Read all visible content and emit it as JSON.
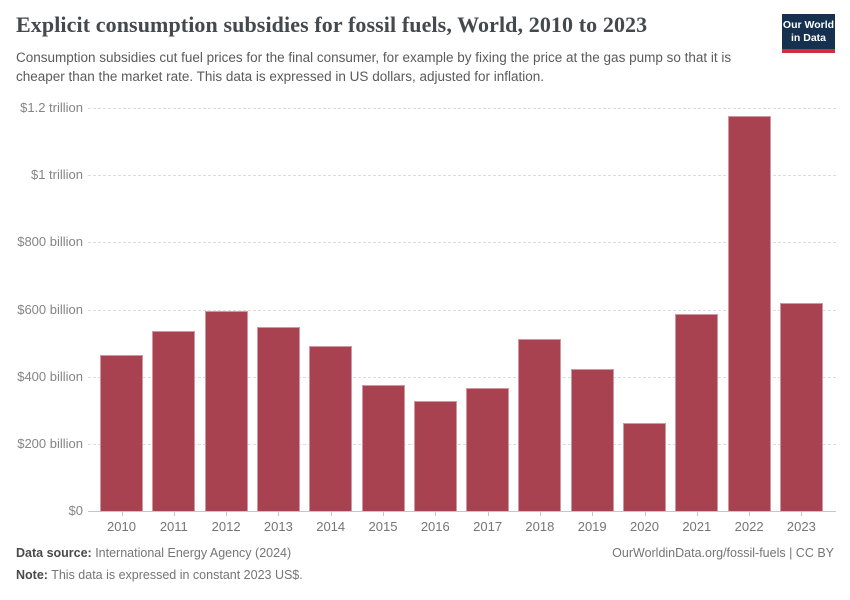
{
  "header": {
    "title": "Explicit consumption subsidies for fossil fuels, World, 2010 to 2023",
    "subtitle": "Consumption subsidies cut fuel prices for the final consumer, for example by fixing the price at the gas pump so that it is cheaper than the market rate. This data is expressed in US dollars, adjusted for inflation.",
    "logo": {
      "line1": "Our World",
      "line2": "in Data"
    }
  },
  "chart_data": {
    "type": "bar",
    "title": "Explicit consumption subsidies for fossil fuels, World, 2010 to 2023",
    "categories": [
      "2010",
      "2011",
      "2012",
      "2013",
      "2014",
      "2015",
      "2016",
      "2017",
      "2018",
      "2019",
      "2020",
      "2021",
      "2022",
      "2023"
    ],
    "values": [
      465,
      537,
      595,
      547,
      490,
      374,
      328,
      365,
      513,
      424,
      263,
      588,
      1175,
      618
    ],
    "unit": "billion US$, constant 2023 prices",
    "xlabel": "",
    "ylabel": "",
    "ylim": [
      0,
      1200
    ],
    "ytick_values": [
      0,
      200,
      400,
      600,
      800,
      1000,
      1200
    ],
    "ytick_labels": [
      "$0",
      "$200 billion",
      "$400 billion",
      "$600 billion",
      "$800 billion",
      "$1 trillion",
      "$1.2 trillion"
    ],
    "grid": "horizontal-dashed",
    "legend": "none",
    "bar_color": "#a84250"
  },
  "footer": {
    "source_label": "Data source:",
    "source_value": " International Energy Agency (2024)",
    "note_label": "Note:",
    "note_value": " This data is expressed in constant 2023 US$.",
    "credit": "OurWorldinData.org/fossil-fuels | CC BY"
  },
  "colors": {
    "bar": "#a84250",
    "logo_navy": "#16304f",
    "logo_red": "#cf2e3e",
    "gridline": "#dcdcdc",
    "axis_text": "#858585"
  }
}
